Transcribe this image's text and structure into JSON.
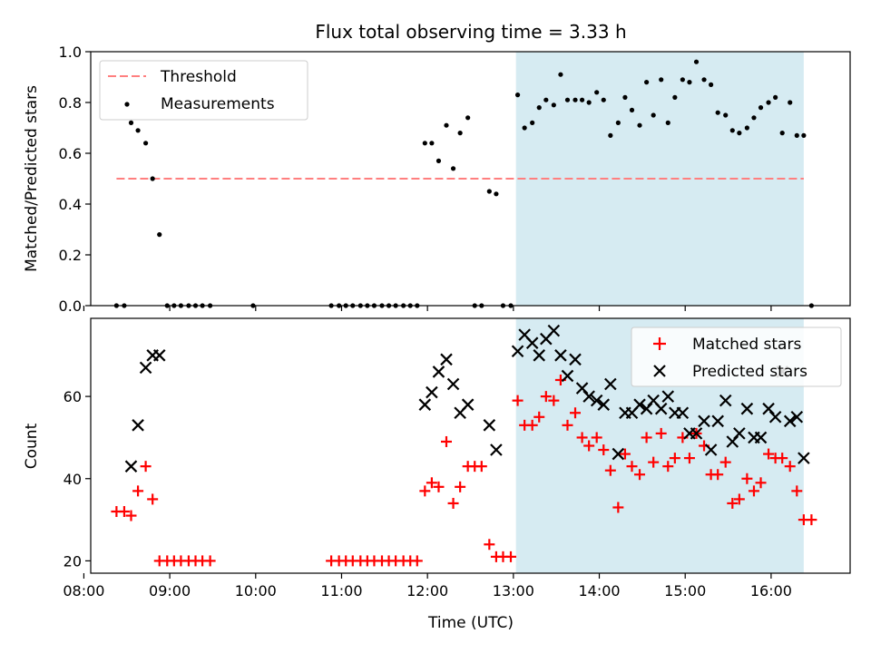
{
  "title": "Flux total observing time = 3.33 h",
  "colors": {
    "threshold": "#ff7f7f",
    "measurements": "#000000",
    "matched": "#ff0000",
    "predicted": "#000000",
    "highlight": "#add8e6"
  },
  "chart_data": [
    {
      "type": "scatter",
      "ylabel": "Matched/Predicted stars",
      "xlim": [
        8.08,
        16.92
      ],
      "ylim": [
        0,
        1.0
      ],
      "yticks": [
        0.0,
        0.2,
        0.4,
        0.6,
        0.8,
        1.0
      ],
      "ytick_labels": [
        "0.0",
        "0.2",
        "0.4",
        "0.6",
        "0.8",
        "1.0"
      ],
      "xtick_values": [
        8,
        9,
        10,
        11,
        12,
        13,
        14,
        15,
        16
      ],
      "highlight_range": [
        13.03,
        16.38
      ],
      "legend": {
        "position": "upper-left",
        "entries": [
          "Threshold",
          "Measurements"
        ]
      },
      "threshold": {
        "name": "Threshold",
        "y": 0.5,
        "x": [
          8.38,
          16.38
        ]
      },
      "series": [
        {
          "name": "Measurements",
          "marker": "dot",
          "x": [
            8.38,
            8.47,
            8.55,
            8.63,
            8.72,
            8.8,
            8.88,
            8.97,
            9.05,
            9.13,
            9.22,
            9.3,
            9.38,
            9.47,
            9.97,
            10.88,
            10.97,
            11.05,
            11.13,
            11.22,
            11.3,
            11.38,
            11.47,
            11.55,
            11.63,
            11.72,
            11.8,
            11.88,
            11.97,
            12.05,
            12.13,
            12.22,
            12.3,
            12.38,
            12.47,
            12.55,
            12.63,
            12.72,
            12.8,
            12.88,
            12.97,
            13.05,
            13.13,
            13.22,
            13.3,
            13.38,
            13.47,
            13.55,
            13.63,
            13.72,
            13.8,
            13.88,
            13.97,
            14.05,
            14.13,
            14.22,
            14.3,
            14.38,
            14.47,
            14.55,
            14.63,
            14.72,
            14.8,
            14.88,
            14.97,
            15.05,
            15.13,
            15.22,
            15.3,
            15.38,
            15.47,
            15.55,
            15.63,
            15.72,
            15.8,
            15.88,
            15.97,
            16.05,
            16.13,
            16.22,
            16.3,
            16.38,
            16.47
          ],
          "y": [
            0,
            0,
            0.72,
            0.69,
            0.64,
            0.5,
            0.28,
            0,
            0,
            0,
            0,
            0,
            0,
            0,
            0,
            0,
            0,
            0,
            0,
            0,
            0,
            0,
            0,
            0,
            0,
            0,
            0,
            0,
            0.64,
            0.64,
            0.57,
            0.71,
            0.54,
            0.68,
            0.74,
            0,
            0,
            0.45,
            0.44,
            0,
            0,
            0.83,
            0.7,
            0.72,
            0.78,
            0.81,
            0.79,
            0.91,
            0.81,
            0.81,
            0.81,
            0.8,
            0.84,
            0.81,
            0.67,
            0.72,
            0.82,
            0.77,
            0.71,
            0.88,
            0.75,
            0.89,
            0.72,
            0.82,
            0.89,
            0.88,
            0.96,
            0.89,
            0.87,
            0.76,
            0.75,
            0.69,
            0.68,
            0.7,
            0.74,
            0.78,
            0.8,
            0.82,
            0.68,
            0.8,
            0.67,
            0.67,
            0
          ]
        }
      ]
    },
    {
      "type": "scatter",
      "ylabel": "Count",
      "xlabel": "Time (UTC)",
      "xlim": [
        8.08,
        16.92
      ],
      "ylim": [
        17,
        79
      ],
      "yticks": [
        20,
        40,
        60
      ],
      "ytick_labels": [
        "20",
        "40",
        "60"
      ],
      "xtick_values": [
        8,
        9,
        10,
        11,
        12,
        13,
        14,
        15,
        16
      ],
      "xtick_labels": [
        "08:00",
        "09:00",
        "10:00",
        "11:00",
        "12:00",
        "13:00",
        "14:00",
        "15:00",
        "16:00"
      ],
      "highlight_range": [
        13.03,
        16.38
      ],
      "legend": {
        "position": "upper-right",
        "entries": [
          "Matched stars",
          "Predicted stars"
        ]
      },
      "series": [
        {
          "name": "Matched stars",
          "marker": "plus",
          "x": [
            8.38,
            8.47,
            8.55,
            8.63,
            8.72,
            8.8,
            8.88,
            8.97,
            9.05,
            9.13,
            9.22,
            9.3,
            9.38,
            9.47,
            10.88,
            10.97,
            11.05,
            11.13,
            11.22,
            11.3,
            11.38,
            11.47,
            11.55,
            11.63,
            11.72,
            11.8,
            11.88,
            11.97,
            12.05,
            12.13,
            12.22,
            12.3,
            12.38,
            12.47,
            12.55,
            12.63,
            12.72,
            12.8,
            12.88,
            12.97,
            13.05,
            13.13,
            13.22,
            13.3,
            13.38,
            13.47,
            13.55,
            13.63,
            13.72,
            13.8,
            13.88,
            13.97,
            14.05,
            14.13,
            14.22,
            14.3,
            14.38,
            14.47,
            14.55,
            14.63,
            14.72,
            14.8,
            14.88,
            14.97,
            15.05,
            15.13,
            15.22,
            15.3,
            15.38,
            15.47,
            15.55,
            15.63,
            15.72,
            15.8,
            15.88,
            15.97,
            16.05,
            16.13,
            16.22,
            16.3,
            16.38,
            16.47
          ],
          "y": [
            32,
            32,
            31,
            37,
            43,
            35,
            20,
            20,
            20,
            20,
            20,
            20,
            20,
            20,
            20,
            20,
            20,
            20,
            20,
            20,
            20,
            20,
            20,
            20,
            20,
            20,
            20,
            37,
            39,
            38,
            49,
            34,
            38,
            43,
            43,
            43,
            24,
            21,
            21,
            21,
            59,
            53,
            53,
            55,
            60,
            59,
            64,
            53,
            56,
            50,
            48,
            50,
            47,
            42,
            33,
            46,
            43,
            41,
            50,
            44,
            51,
            43,
            45,
            50,
            45,
            51,
            48,
            41,
            41,
            44,
            34,
            35,
            40,
            37,
            39,
            46,
            45,
            45,
            43,
            37,
            30,
            30
          ]
        },
        {
          "name": "Predicted stars",
          "marker": "x",
          "x": [
            8.55,
            8.63,
            8.72,
            8.8,
            8.88,
            11.97,
            12.05,
            12.13,
            12.22,
            12.3,
            12.38,
            12.47,
            12.72,
            12.8,
            13.05,
            13.13,
            13.22,
            13.3,
            13.38,
            13.47,
            13.55,
            13.63,
            13.72,
            13.8,
            13.88,
            13.97,
            14.05,
            14.13,
            14.22,
            14.3,
            14.38,
            14.47,
            14.55,
            14.63,
            14.72,
            14.8,
            14.88,
            14.97,
            15.05,
            15.13,
            15.22,
            15.3,
            15.38,
            15.47,
            15.55,
            15.63,
            15.72,
            15.8,
            15.88,
            15.97,
            16.05,
            16.13,
            16.22,
            16.3,
            16.38
          ],
          "y": [
            43,
            53,
            67,
            70,
            70,
            58,
            61,
            66,
            69,
            63,
            56,
            58,
            53,
            47,
            71,
            75,
            73,
            70,
            74,
            76,
            70,
            65,
            69,
            62,
            60,
            59,
            58,
            63,
            46,
            56,
            56,
            58,
            57,
            59,
            57,
            60,
            56,
            56,
            51,
            51,
            54,
            47,
            54,
            59,
            49,
            51,
            57,
            50,
            50,
            57,
            55,
            66,
            54,
            55,
            45
          ]
        }
      ]
    }
  ]
}
